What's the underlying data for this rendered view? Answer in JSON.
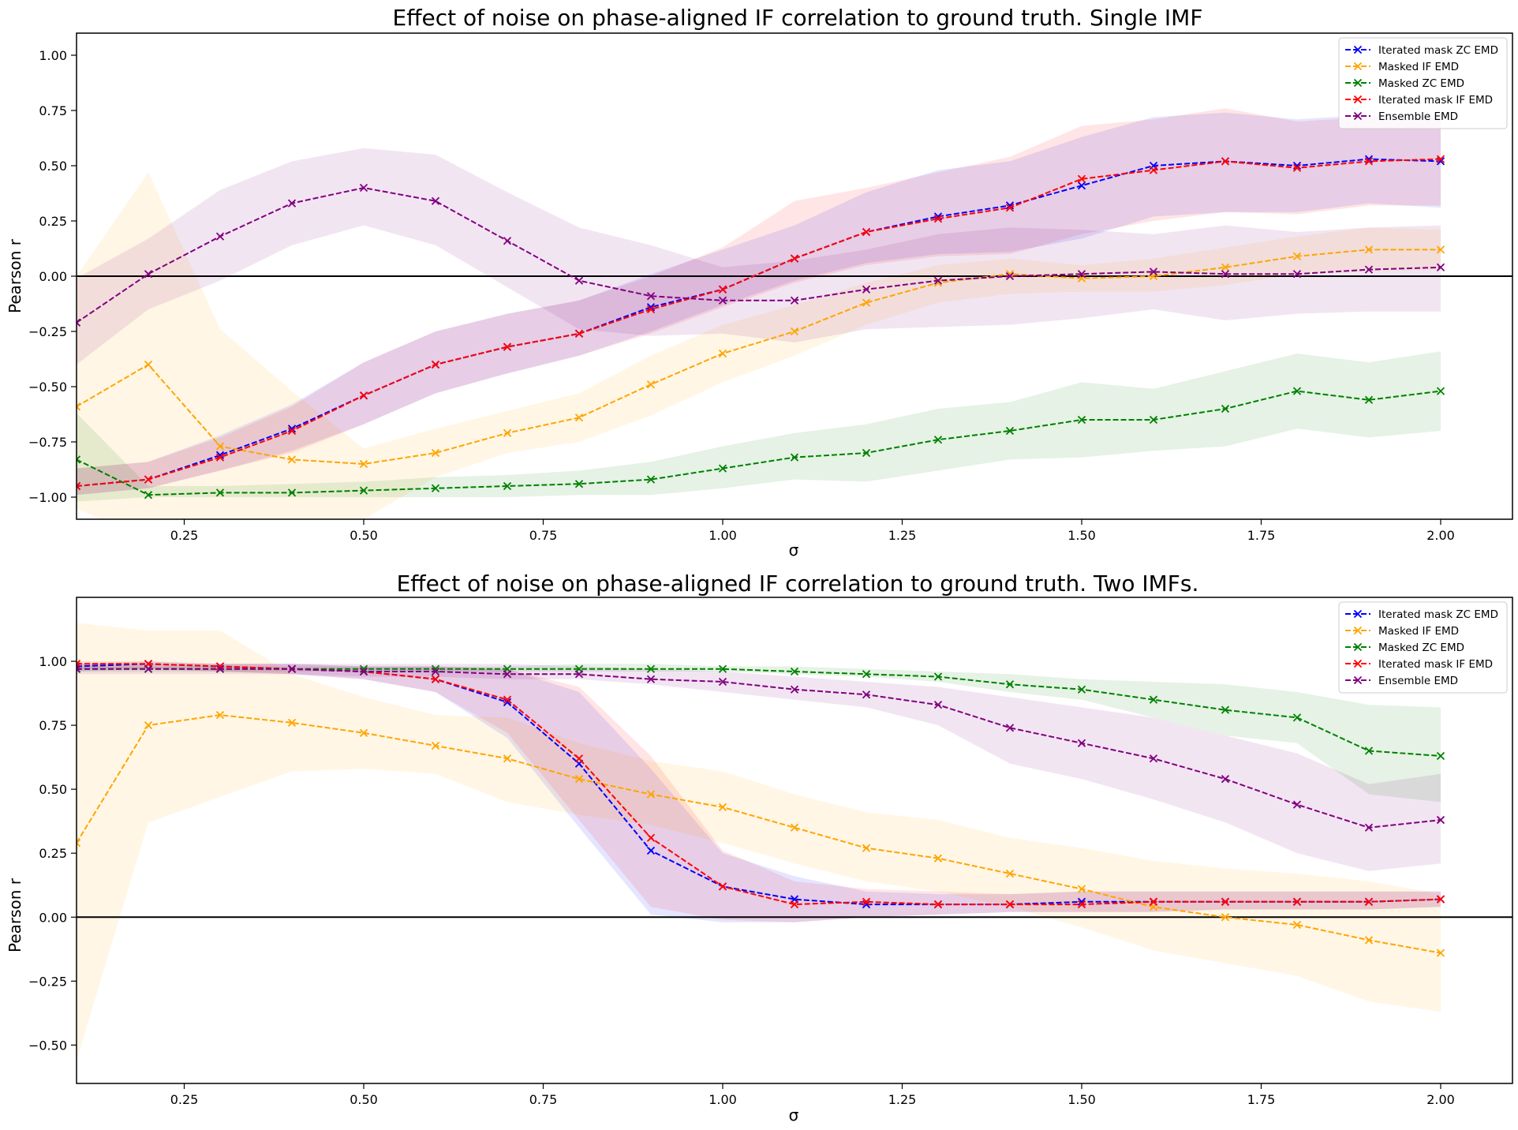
{
  "chart_data": [
    {
      "type": "line",
      "title": "Effect of noise on phase-aligned IF correlation to ground truth. Single IMF",
      "xlabel": "σ",
      "ylabel": "Pearson r",
      "xlim": [
        0.1,
        2.1
      ],
      "ylim": [
        -1.1,
        1.1
      ],
      "xticks": [
        0.25,
        0.5,
        0.75,
        1.0,
        1.25,
        1.5,
        1.75,
        2.0
      ],
      "xtick_labels": [
        "0.25",
        "0.50",
        "0.75",
        "1.00",
        "1.25",
        "1.50",
        "1.75",
        "2.00"
      ],
      "yticks": [
        -1.0,
        -0.75,
        -0.5,
        -0.25,
        0.0,
        0.25,
        0.5,
        0.75,
        1.0
      ],
      "ytick_labels": [
        "−1.00",
        "−0.75",
        "−0.50",
        "−0.25",
        "0.00",
        "0.25",
        "0.50",
        "0.75",
        "1.00"
      ],
      "hline": 0,
      "grid": false,
      "legend_position": "top-right",
      "x": [
        0.1,
        0.2,
        0.3,
        0.4,
        0.5,
        0.6,
        0.7,
        0.8,
        0.9,
        1.0,
        1.1,
        1.2,
        1.3,
        1.4,
        1.5,
        1.6,
        1.7,
        1.8,
        1.9,
        2.0
      ],
      "series": [
        {
          "name": "Iterated mask ZC EMD",
          "color": "#0000ff",
          "values": [
            -0.95,
            -0.92,
            -0.81,
            -0.69,
            -0.54,
            -0.4,
            -0.32,
            -0.26,
            -0.14,
            -0.06,
            0.08,
            0.2,
            0.27,
            0.32,
            0.41,
            0.5,
            0.52,
            0.5,
            0.53,
            0.52
          ],
          "band_low": [
            -0.99,
            -0.96,
            -0.88,
            -0.79,
            -0.67,
            -0.53,
            -0.44,
            -0.36,
            -0.25,
            -0.13,
            -0.02,
            0.06,
            0.1,
            0.11,
            0.17,
            0.27,
            0.29,
            0.29,
            0.33,
            0.31
          ],
          "band_high": [
            -0.87,
            -0.84,
            -0.72,
            -0.58,
            -0.39,
            -0.25,
            -0.17,
            -0.11,
            0.01,
            0.12,
            0.23,
            0.38,
            0.48,
            0.52,
            0.63,
            0.72,
            0.74,
            0.71,
            0.73,
            0.72
          ]
        },
        {
          "name": "Masked IF EMD",
          "color": "#ffa500",
          "values": [
            -0.59,
            -0.4,
            -0.77,
            -0.83,
            -0.85,
            -0.8,
            -0.71,
            -0.64,
            -0.49,
            -0.35,
            -0.25,
            -0.12,
            -0.03,
            0.01,
            -0.01,
            0.0,
            0.04,
            0.09,
            0.12,
            0.12
          ],
          "band_low": [
            -1.05,
            -1.2,
            -1.2,
            -1.2,
            -1.1,
            -0.91,
            -0.8,
            -0.75,
            -0.63,
            -0.48,
            -0.36,
            -0.22,
            -0.12,
            -0.08,
            -0.07,
            -0.07,
            -0.04,
            0.01,
            0.02,
            0.03
          ],
          "band_high": [
            0.0,
            0.47,
            -0.24,
            -0.52,
            -0.78,
            -0.69,
            -0.61,
            -0.53,
            -0.36,
            -0.22,
            -0.13,
            -0.03,
            0.05,
            0.08,
            0.05,
            0.08,
            0.13,
            0.18,
            0.22,
            0.21
          ]
        },
        {
          "name": "Masked ZC EMD",
          "color": "#008000",
          "values": [
            -0.83,
            -0.99,
            -0.98,
            -0.98,
            -0.97,
            -0.96,
            -0.95,
            -0.94,
            -0.92,
            -0.87,
            -0.82,
            -0.8,
            -0.74,
            -0.7,
            -0.65,
            -0.65,
            -0.6,
            -0.52,
            -0.56,
            -0.52
          ],
          "band_low": [
            -1.02,
            -1.0,
            -1.0,
            -1.0,
            -1.0,
            -1.0,
            -1.0,
            -0.99,
            -0.99,
            -0.96,
            -0.92,
            -0.93,
            -0.88,
            -0.83,
            -0.82,
            -0.79,
            -0.77,
            -0.69,
            -0.73,
            -0.7
          ],
          "band_high": [
            -0.62,
            -0.95,
            -0.95,
            -0.94,
            -0.93,
            -0.91,
            -0.9,
            -0.88,
            -0.84,
            -0.77,
            -0.71,
            -0.67,
            -0.6,
            -0.57,
            -0.48,
            -0.51,
            -0.43,
            -0.35,
            -0.39,
            -0.34
          ]
        },
        {
          "name": "Iterated mask IF EMD",
          "color": "#ff0000",
          "values": [
            -0.95,
            -0.92,
            -0.82,
            -0.7,
            -0.54,
            -0.4,
            -0.32,
            -0.26,
            -0.15,
            -0.06,
            0.08,
            0.2,
            0.26,
            0.31,
            0.44,
            0.48,
            0.52,
            0.49,
            0.52,
            0.53
          ],
          "band_low": [
            -0.99,
            -0.96,
            -0.88,
            -0.8,
            -0.67,
            -0.53,
            -0.44,
            -0.36,
            -0.26,
            -0.14,
            -0.03,
            0.05,
            0.09,
            0.1,
            0.19,
            0.25,
            0.29,
            0.28,
            0.32,
            0.32
          ],
          "band_high": [
            -0.87,
            -0.84,
            -0.73,
            -0.59,
            -0.39,
            -0.25,
            -0.17,
            -0.11,
            0.0,
            0.13,
            0.34,
            0.4,
            0.47,
            0.54,
            0.68,
            0.71,
            0.76,
            0.7,
            0.72,
            0.73
          ]
        },
        {
          "name": "Ensemble EMD",
          "color": "#800080",
          "values": [
            -0.21,
            0.01,
            0.18,
            0.33,
            0.4,
            0.34,
            0.16,
            -0.02,
            -0.09,
            -0.11,
            -0.11,
            -0.06,
            -0.02,
            0.0,
            0.01,
            0.02,
            0.01,
            0.01,
            0.03,
            0.04
          ],
          "band_low": [
            -0.4,
            -0.15,
            -0.02,
            0.14,
            0.23,
            0.14,
            -0.05,
            -0.24,
            -0.27,
            -0.26,
            -0.3,
            -0.24,
            -0.23,
            -0.22,
            -0.19,
            -0.15,
            -0.2,
            -0.17,
            -0.16,
            -0.16
          ],
          "band_high": [
            -0.01,
            0.17,
            0.39,
            0.52,
            0.58,
            0.55,
            0.38,
            0.22,
            0.14,
            0.04,
            0.07,
            0.12,
            0.19,
            0.22,
            0.21,
            0.19,
            0.23,
            0.2,
            0.22,
            0.23
          ]
        }
      ]
    },
    {
      "type": "line",
      "title": "Effect of noise on phase-aligned IF correlation to ground truth. Two IMFs.",
      "xlabel": "σ",
      "ylabel": "Pearson r",
      "xlim": [
        0.1,
        2.1
      ],
      "ylim": [
        -0.65,
        1.25
      ],
      "xticks": [
        0.25,
        0.5,
        0.75,
        1.0,
        1.25,
        1.5,
        1.75,
        2.0
      ],
      "xtick_labels": [
        "0.25",
        "0.50",
        "0.75",
        "1.00",
        "1.25",
        "1.50",
        "1.75",
        "2.00"
      ],
      "yticks": [
        -0.5,
        -0.25,
        0.0,
        0.25,
        0.5,
        0.75,
        1.0
      ],
      "ytick_labels": [
        "−0.50",
        "−0.25",
        "0.00",
        "0.25",
        "0.50",
        "0.75",
        "1.00"
      ],
      "hline": 0,
      "grid": false,
      "legend_position": "top-right",
      "x": [
        0.1,
        0.2,
        0.3,
        0.4,
        0.5,
        0.6,
        0.7,
        0.8,
        0.9,
        1.0,
        1.1,
        1.2,
        1.3,
        1.4,
        1.5,
        1.6,
        1.7,
        1.8,
        1.9,
        2.0
      ],
      "series": [
        {
          "name": "Iterated mask ZC EMD",
          "color": "#0000ff",
          "values": [
            0.98,
            0.99,
            0.98,
            0.97,
            0.96,
            0.93,
            0.84,
            0.6,
            0.26,
            0.12,
            0.07,
            0.05,
            0.05,
            0.05,
            0.06,
            0.06,
            0.06,
            0.06,
            0.06,
            0.07
          ],
          "band_low": [
            0.96,
            0.97,
            0.96,
            0.95,
            0.93,
            0.88,
            0.7,
            0.35,
            0.01,
            -0.02,
            -0.02,
            0.0,
            0.01,
            0.02,
            0.02,
            0.02,
            0.03,
            0.03,
            0.03,
            0.04
          ],
          "band_high": [
            0.99,
            1.0,
            0.99,
            0.99,
            0.98,
            0.98,
            0.97,
            0.88,
            0.58,
            0.25,
            0.16,
            0.1,
            0.09,
            0.09,
            0.1,
            0.1,
            0.1,
            0.1,
            0.1,
            0.1
          ]
        },
        {
          "name": "Masked IF EMD",
          "color": "#ffa500",
          "values": [
            0.29,
            0.75,
            0.79,
            0.76,
            0.72,
            0.67,
            0.62,
            0.54,
            0.48,
            0.43,
            0.35,
            0.27,
            0.23,
            0.17,
            0.11,
            0.04,
            0.0,
            -0.03,
            -0.09,
            -0.14
          ],
          "band_low": [
            -0.56,
            0.37,
            0.47,
            0.57,
            0.58,
            0.56,
            0.45,
            0.4,
            0.36,
            0.29,
            0.21,
            0.14,
            0.1,
            0.04,
            -0.04,
            -0.13,
            -0.18,
            -0.23,
            -0.33,
            -0.37
          ],
          "band_high": [
            1.15,
            1.12,
            1.12,
            0.95,
            0.86,
            0.79,
            0.78,
            0.68,
            0.61,
            0.57,
            0.48,
            0.41,
            0.38,
            0.31,
            0.27,
            0.22,
            0.19,
            0.17,
            0.14,
            0.09
          ]
        },
        {
          "name": "Masked ZC EMD",
          "color": "#008000",
          "values": [
            0.97,
            0.97,
            0.97,
            0.97,
            0.97,
            0.97,
            0.97,
            0.97,
            0.97,
            0.97,
            0.96,
            0.95,
            0.94,
            0.91,
            0.89,
            0.85,
            0.81,
            0.78,
            0.65,
            0.63
          ],
          "band_low": [
            0.96,
            0.96,
            0.96,
            0.96,
            0.96,
            0.96,
            0.96,
            0.96,
            0.96,
            0.96,
            0.95,
            0.94,
            0.92,
            0.88,
            0.85,
            0.78,
            0.71,
            0.68,
            0.48,
            0.45
          ],
          "band_high": [
            0.98,
            0.98,
            0.98,
            0.98,
            0.98,
            0.98,
            0.98,
            0.99,
            0.99,
            0.98,
            0.98,
            0.97,
            0.96,
            0.95,
            0.93,
            0.92,
            0.91,
            0.88,
            0.83,
            0.82
          ]
        },
        {
          "name": "Iterated mask IF EMD",
          "color": "#ff0000",
          "values": [
            0.99,
            0.99,
            0.98,
            0.97,
            0.96,
            0.93,
            0.85,
            0.62,
            0.31,
            0.12,
            0.05,
            0.06,
            0.05,
            0.05,
            0.05,
            0.06,
            0.06,
            0.06,
            0.06,
            0.07
          ],
          "band_low": [
            0.97,
            0.97,
            0.96,
            0.95,
            0.93,
            0.88,
            0.72,
            0.38,
            0.04,
            -0.01,
            -0.02,
            0.0,
            0.01,
            0.02,
            0.02,
            0.02,
            0.03,
            0.03,
            0.03,
            0.04
          ],
          "band_high": [
            1.0,
            1.0,
            0.99,
            0.99,
            0.98,
            0.98,
            0.97,
            0.9,
            0.63,
            0.26,
            0.14,
            0.11,
            0.1,
            0.09,
            0.1,
            0.1,
            0.1,
            0.1,
            0.1,
            0.1
          ]
        },
        {
          "name": "Ensemble EMD",
          "color": "#800080",
          "values": [
            0.97,
            0.97,
            0.97,
            0.97,
            0.96,
            0.96,
            0.95,
            0.95,
            0.93,
            0.92,
            0.89,
            0.87,
            0.83,
            0.74,
            0.68,
            0.62,
            0.54,
            0.44,
            0.35,
            0.38
          ],
          "band_low": [
            0.95,
            0.95,
            0.95,
            0.95,
            0.94,
            0.94,
            0.93,
            0.93,
            0.91,
            0.88,
            0.85,
            0.82,
            0.75,
            0.6,
            0.54,
            0.46,
            0.37,
            0.25,
            0.18,
            0.21
          ],
          "band_high": [
            0.99,
            0.99,
            0.99,
            0.99,
            0.99,
            0.99,
            0.99,
            0.98,
            0.97,
            0.96,
            0.94,
            0.92,
            0.9,
            0.86,
            0.82,
            0.78,
            0.71,
            0.64,
            0.52,
            0.56
          ]
        }
      ]
    }
  ]
}
